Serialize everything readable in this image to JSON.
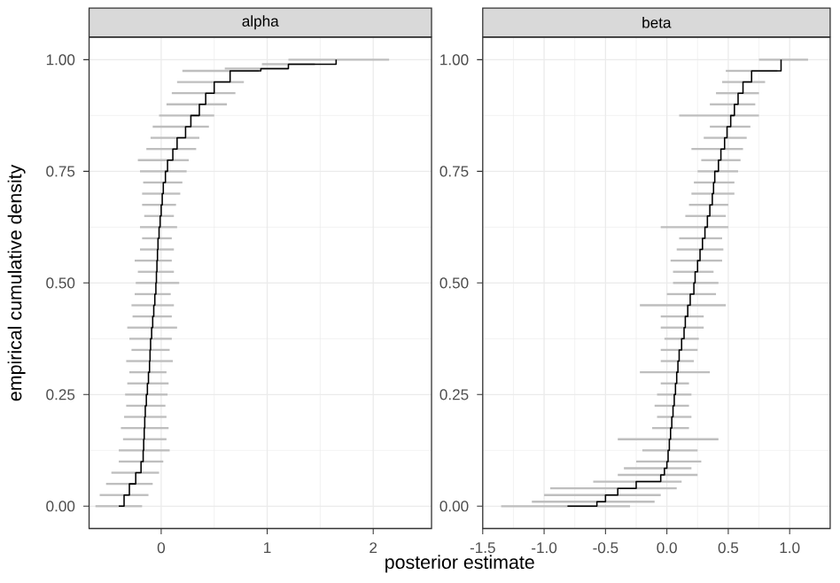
{
  "chart_data": [
    {
      "type": "step",
      "title": "alpha",
      "xlabel": "posterior estimate",
      "ylabel": "empirical cumulative density",
      "color": "#000000",
      "grid": true,
      "xlim": [
        -0.68,
        2.55
      ],
      "xticks": [
        0,
        1,
        2
      ],
      "ylim": [
        -0.05,
        1.05
      ],
      "yticks": [
        {
          "value": 0,
          "label": "0.00"
        },
        {
          "value": 0.25,
          "label": "0.25"
        },
        {
          "value": 0.5,
          "label": "0.50"
        },
        {
          "value": 0.75,
          "label": "0.75"
        },
        {
          "value": 1,
          "label": "1.00"
        }
      ],
      "x": [
        -0.4,
        -0.35,
        -0.3,
        -0.24,
        -0.19,
        -0.17,
        -0.165,
        -0.16,
        -0.155,
        -0.15,
        -0.14,
        -0.13,
        -0.12,
        -0.11,
        -0.105,
        -0.1,
        -0.09,
        -0.08,
        -0.07,
        -0.06,
        -0.05,
        -0.045,
        -0.04,
        -0.035,
        -0.03,
        -0.02,
        -0.01,
        0.0,
        0.01,
        0.02,
        0.04,
        0.06,
        0.11,
        0.15,
        0.23,
        0.28,
        0.36,
        0.42,
        0.5,
        0.65,
        0.94,
        1.2,
        1.65
      ],
      "values": [
        0.0,
        0.025,
        0.05,
        0.075,
        0.1,
        0.125,
        0.15,
        0.175,
        0.2,
        0.225,
        0.25,
        0.275,
        0.3,
        0.325,
        0.35,
        0.375,
        0.4,
        0.425,
        0.45,
        0.475,
        0.5,
        0.525,
        0.55,
        0.575,
        0.6,
        0.625,
        0.65,
        0.675,
        0.7,
        0.725,
        0.75,
        0.775,
        0.8,
        0.825,
        0.85,
        0.875,
        0.9,
        0.925,
        0.95,
        0.975,
        0.98,
        0.99,
        1.0
      ],
      "xerrors": [
        [
          -0.62,
          -0.18
        ],
        [
          -0.58,
          -0.12
        ],
        [
          -0.52,
          -0.08
        ],
        [
          -0.47,
          -0.02
        ],
        [
          -0.4,
          0.02
        ],
        [
          -0.4,
          0.08
        ],
        [
          -0.36,
          0.05
        ],
        [
          -0.38,
          0.07
        ],
        [
          -0.35,
          0.05
        ],
        [
          -0.33,
          0.04
        ],
        [
          -0.34,
          0.06
        ],
        [
          -0.32,
          0.07
        ],
        [
          -0.3,
          0.05
        ],
        [
          -0.33,
          0.11
        ],
        [
          -0.28,
          0.08
        ],
        [
          -0.3,
          0.1
        ],
        [
          -0.32,
          0.15
        ],
        [
          -0.27,
          0.1
        ],
        [
          -0.28,
          0.12
        ],
        [
          -0.25,
          0.09
        ],
        [
          -0.24,
          0.17
        ],
        [
          -0.22,
          0.12
        ],
        [
          -0.25,
          0.1
        ],
        [
          -0.2,
          0.12
        ],
        [
          -0.18,
          0.1
        ],
        [
          -0.2,
          0.15
        ],
        [
          -0.16,
          0.12
        ],
        [
          -0.18,
          0.14
        ],
        [
          -0.18,
          0.18
        ],
        [
          -0.17,
          0.2
        ],
        [
          -0.2,
          0.24
        ],
        [
          -0.22,
          0.26
        ],
        [
          -0.14,
          0.33
        ],
        [
          -0.1,
          0.36
        ],
        [
          -0.08,
          0.45
        ],
        [
          -0.02,
          0.5
        ],
        [
          0.05,
          0.62
        ],
        [
          0.1,
          0.7
        ],
        [
          0.15,
          0.78
        ],
        [
          0.2,
          0.92
        ],
        [
          0.6,
          1.2
        ],
        [
          0.95,
          1.45
        ],
        [
          1.2,
          2.15
        ]
      ]
    },
    {
      "type": "step",
      "title": "beta",
      "color": "#000000",
      "grid": true,
      "xlim": [
        -1.5,
        1.33
      ],
      "xticks": [
        -1.5,
        {
          "value": -1,
          "label": "-1.0"
        },
        -0.5,
        {
          "value": 0,
          "label": "0.0"
        },
        0.5,
        {
          "value": 1,
          "label": "1.0"
        }
      ],
      "ylim": [
        -0.05,
        1.05
      ],
      "yticks": [
        {
          "value": 0,
          "label": "0.00"
        },
        {
          "value": 0.25,
          "label": "0.25"
        },
        {
          "value": 0.5,
          "label": "0.50"
        },
        {
          "value": 0.75,
          "label": "0.75"
        },
        {
          "value": 1,
          "label": "1.00"
        }
      ],
      "x": [
        -0.81,
        -0.57,
        -0.5,
        -0.4,
        -0.25,
        -0.05,
        -0.02,
        0.0,
        0.01,
        0.02,
        0.03,
        0.04,
        0.05,
        0.06,
        0.07,
        0.08,
        0.09,
        0.1,
        0.12,
        0.14,
        0.15,
        0.17,
        0.19,
        0.22,
        0.23,
        0.25,
        0.27,
        0.29,
        0.31,
        0.33,
        0.35,
        0.37,
        0.38,
        0.39,
        0.42,
        0.44,
        0.47,
        0.49,
        0.52,
        0.55,
        0.58,
        0.62,
        0.69,
        0.93
      ],
      "values": [
        0.0,
        0.01,
        0.025,
        0.04,
        0.055,
        0.07,
        0.085,
        0.1,
        0.125,
        0.15,
        0.175,
        0.2,
        0.225,
        0.25,
        0.275,
        0.3,
        0.325,
        0.35,
        0.375,
        0.4,
        0.425,
        0.45,
        0.475,
        0.5,
        0.525,
        0.55,
        0.575,
        0.6,
        0.625,
        0.65,
        0.675,
        0.7,
        0.725,
        0.75,
        0.775,
        0.8,
        0.825,
        0.85,
        0.875,
        0.9,
        0.925,
        0.95,
        0.975,
        1.0
      ],
      "xerrors": [
        [
          -1.35,
          -0.3
        ],
        [
          -1.1,
          -0.1
        ],
        [
          -1.0,
          -0.05
        ],
        [
          -0.95,
          0.08
        ],
        [
          -0.6,
          0.12
        ],
        [
          -0.4,
          0.25
        ],
        [
          -0.35,
          0.2
        ],
        [
          -0.25,
          0.28
        ],
        [
          -0.2,
          0.25
        ],
        [
          -0.4,
          0.42
        ],
        [
          -0.12,
          0.18
        ],
        [
          -0.08,
          0.2
        ],
        [
          -0.1,
          0.18
        ],
        [
          -0.08,
          0.2
        ],
        [
          -0.05,
          0.18
        ],
        [
          -0.22,
          0.35
        ],
        [
          -0.05,
          0.22
        ],
        [
          -0.05,
          0.25
        ],
        [
          -0.02,
          0.26
        ],
        [
          -0.05,
          0.3
        ],
        [
          -0.05,
          0.3
        ],
        [
          -0.22,
          0.48
        ],
        [
          0.0,
          0.4
        ],
        [
          0.05,
          0.42
        ],
        [
          0.05,
          0.38
        ],
        [
          0.03,
          0.45
        ],
        [
          0.08,
          0.46
        ],
        [
          0.1,
          0.45
        ],
        [
          -0.05,
          0.5
        ],
        [
          0.15,
          0.48
        ],
        [
          0.18,
          0.5
        ],
        [
          0.2,
          0.55
        ],
        [
          0.22,
          0.55
        ],
        [
          0.25,
          0.58
        ],
        [
          0.28,
          0.6
        ],
        [
          0.2,
          0.62
        ],
        [
          0.3,
          0.65
        ],
        [
          0.35,
          0.68
        ],
        [
          0.1,
          0.75
        ],
        [
          0.35,
          0.72
        ],
        [
          0.4,
          0.75
        ],
        [
          0.45,
          0.8
        ],
        [
          0.48,
          0.9
        ],
        [
          0.75,
          1.15
        ]
      ]
    }
  ]
}
